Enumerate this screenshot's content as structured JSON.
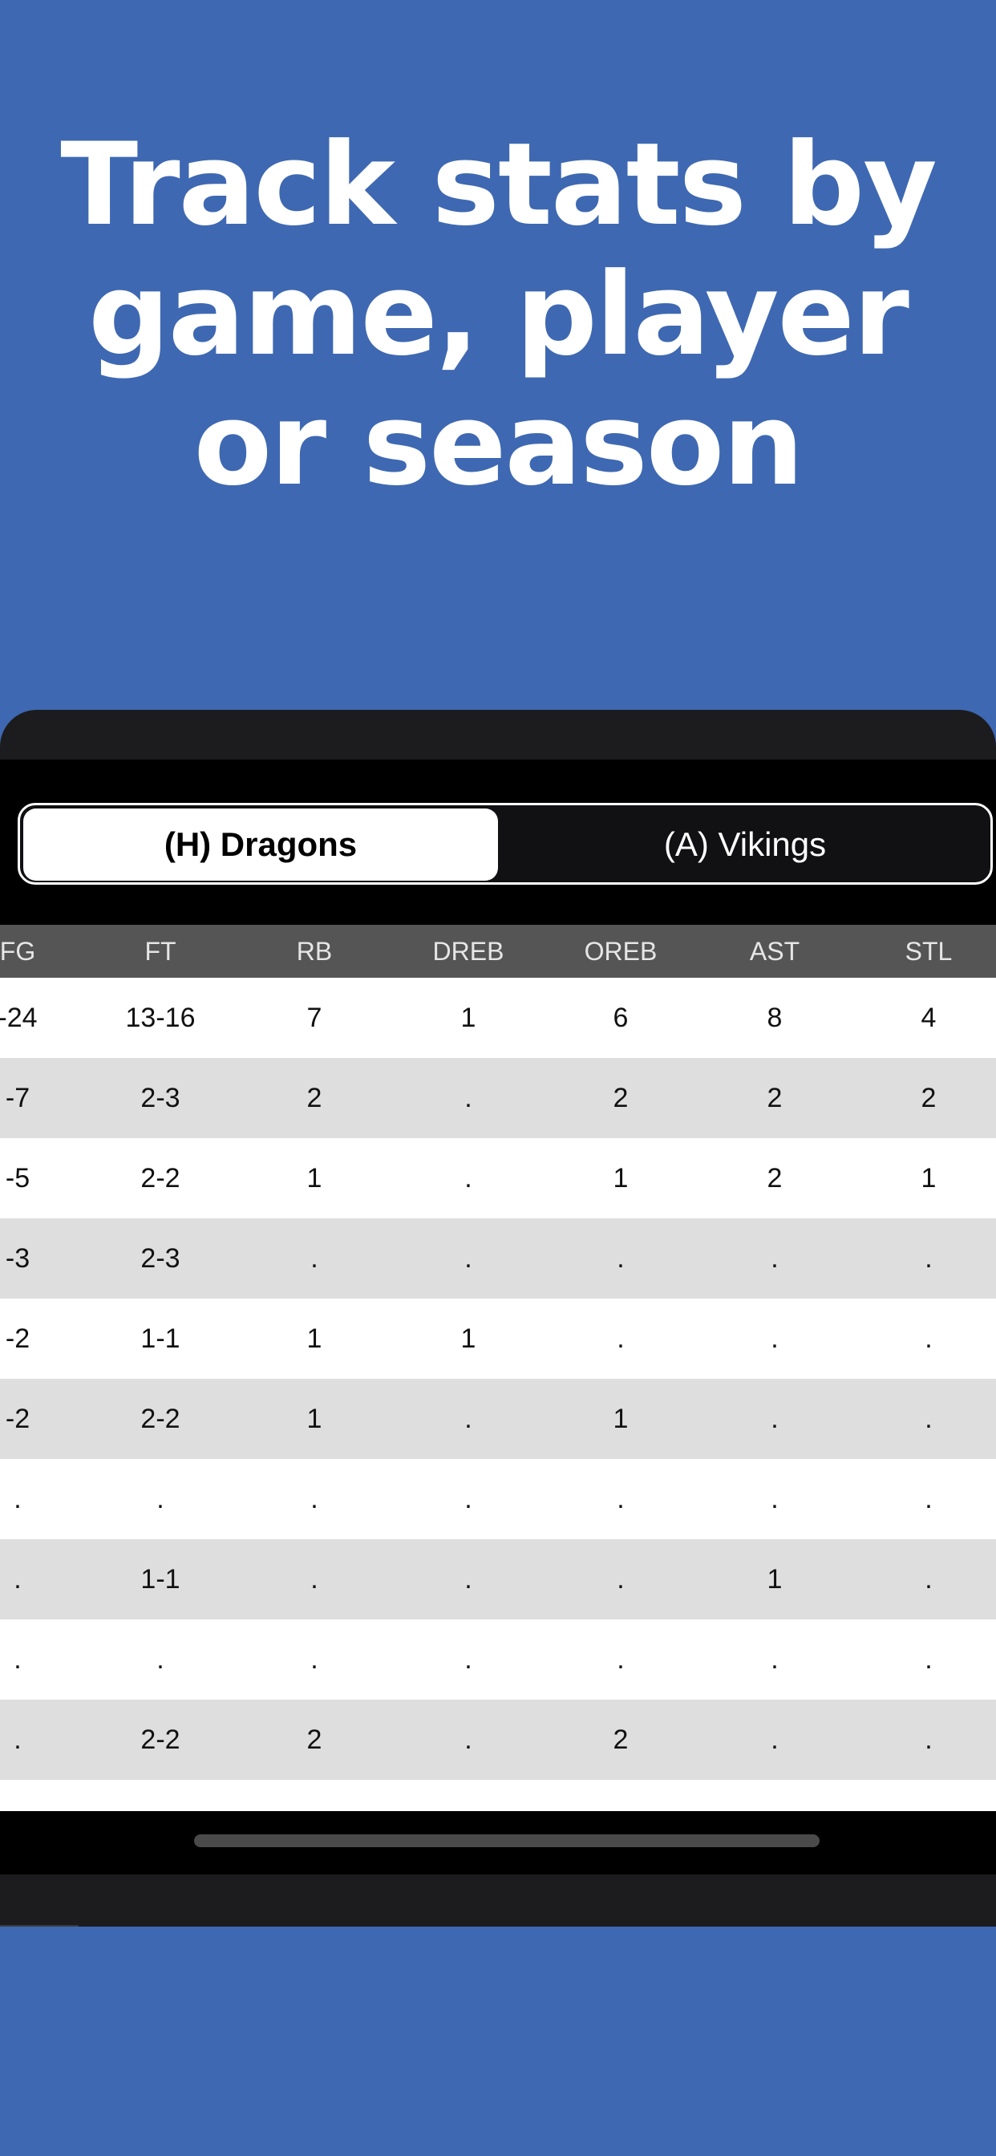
{
  "headline": {
    "line1": "Track stats by",
    "line2": "game, player",
    "line3": "or season"
  },
  "teams": {
    "home": "(H) Dragons",
    "away": "(A) Vikings",
    "selected": "home"
  },
  "table": {
    "columns": [
      "FG",
      "FT",
      "RB",
      "DREB",
      "OREB",
      "AST",
      "STL"
    ],
    "rows": [
      [
        "-24",
        "13-16",
        "7",
        "1",
        "6",
        "8",
        "4"
      ],
      [
        "-7",
        "2-3",
        "2",
        ".",
        "2",
        "2",
        "2"
      ],
      [
        "-5",
        "2-2",
        "1",
        ".",
        "1",
        "2",
        "1"
      ],
      [
        "-3",
        "2-3",
        ".",
        ".",
        ".",
        ".",
        "."
      ],
      [
        "-2",
        "1-1",
        "1",
        "1",
        ".",
        ".",
        "."
      ],
      [
        "-2",
        "2-2",
        "1",
        ".",
        "1",
        ".",
        "."
      ],
      [
        ".",
        ".",
        ".",
        ".",
        ".",
        ".",
        "."
      ],
      [
        ".",
        "1-1",
        ".",
        ".",
        ".",
        "1",
        "."
      ],
      [
        ".",
        ".",
        ".",
        ".",
        ".",
        ".",
        "."
      ],
      [
        ".",
        "2-2",
        "2",
        ".",
        "2",
        ".",
        "."
      ],
      [
        "",
        "",
        "",
        "",
        "",
        "",
        ""
      ]
    ]
  },
  "colors": {
    "background": "#3e68b2",
    "header_row": "#555555",
    "alt_row": "#dedede"
  }
}
